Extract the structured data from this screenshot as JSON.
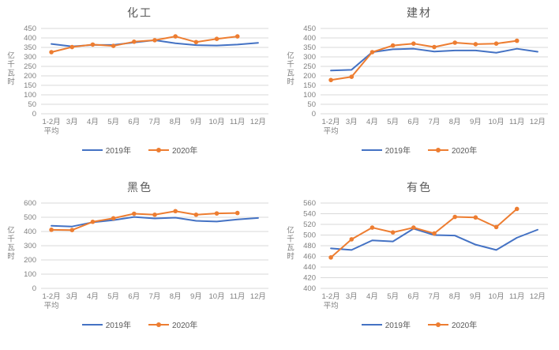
{
  "colors": {
    "series2019": "#4472C4",
    "series2020": "#ED7D31",
    "grid": "#D9D9D9",
    "tick": "#808080",
    "title": "#595959"
  },
  "chart_data": [
    {
      "type": "line",
      "title": "化工",
      "ylabel": "亿千瓦时",
      "grid": true,
      "legend_position": "bottom",
      "categories": [
        "1-2月\n平均",
        "3月",
        "4月",
        "5月",
        "6月",
        "7月",
        "8月",
        "9月",
        "10月",
        "11月",
        "12月"
      ],
      "ylim": [
        0,
        450
      ],
      "ytick": 50,
      "series": [
        {
          "name": "2019年",
          "color": "#4472C4",
          "marker": false,
          "values": [
            368,
            355,
            363,
            363,
            376,
            388,
            372,
            362,
            360,
            365,
            374
          ]
        },
        {
          "name": "2020年",
          "color": "#ED7D31",
          "marker": true,
          "values": [
            325,
            352,
            365,
            358,
            380,
            388,
            408,
            378,
            395,
            408
          ]
        }
      ]
    },
    {
      "type": "line",
      "title": "建材",
      "ylabel": "亿千瓦时",
      "grid": true,
      "legend_position": "bottom",
      "categories": [
        "1-2月\n平均",
        "3月",
        "4月",
        "5月",
        "6月",
        "7月",
        "8月",
        "9月",
        "10月",
        "11月",
        "12月"
      ],
      "ylim": [
        0,
        450
      ],
      "ytick": 50,
      "series": [
        {
          "name": "2019年",
          "color": "#4472C4",
          "marker": false,
          "values": [
            228,
            232,
            325,
            340,
            343,
            328,
            334,
            334,
            322,
            343,
            327
          ]
        },
        {
          "name": "2020年",
          "color": "#ED7D31",
          "marker": true,
          "values": [
            178,
            195,
            325,
            360,
            370,
            352,
            375,
            367,
            370,
            385
          ]
        }
      ]
    },
    {
      "type": "line",
      "title": "黑色",
      "ylabel": "亿千瓦时",
      "grid": true,
      "legend_position": "bottom",
      "categories": [
        "1-2月\n平均",
        "3月",
        "4月",
        "5月",
        "6月",
        "7月",
        "8月",
        "9月",
        "10月",
        "11月",
        "12月"
      ],
      "ylim": [
        0,
        600
      ],
      "ytick": 100,
      "series": [
        {
          "name": "2019年",
          "color": "#4472C4",
          "marker": false,
          "values": [
            440,
            435,
            465,
            480,
            502,
            492,
            497,
            475,
            470,
            485,
            495
          ]
        },
        {
          "name": "2020年",
          "color": "#ED7D31",
          "marker": true,
          "values": [
            412,
            410,
            468,
            493,
            525,
            518,
            543,
            518,
            527,
            530
          ]
        }
      ]
    },
    {
      "type": "line",
      "title": "有色",
      "ylabel": "亿千瓦时",
      "grid": true,
      "legend_position": "bottom",
      "categories": [
        "1-2月\n平均",
        "3月",
        "4月",
        "5月",
        "6月",
        "7月",
        "8月",
        "9月",
        "10月",
        "11月",
        "12月"
      ],
      "ylim": [
        400,
        560
      ],
      "ytick": 20,
      "series": [
        {
          "name": "2019年",
          "color": "#4472C4",
          "marker": false,
          "values": [
            475,
            472,
            490,
            488,
            512,
            500,
            499,
            482,
            472,
            495,
            510
          ]
        },
        {
          "name": "2020年",
          "color": "#ED7D31",
          "marker": true,
          "values": [
            458,
            492,
            514,
            505,
            514,
            503,
            534,
            533,
            515,
            549
          ]
        }
      ]
    }
  ]
}
